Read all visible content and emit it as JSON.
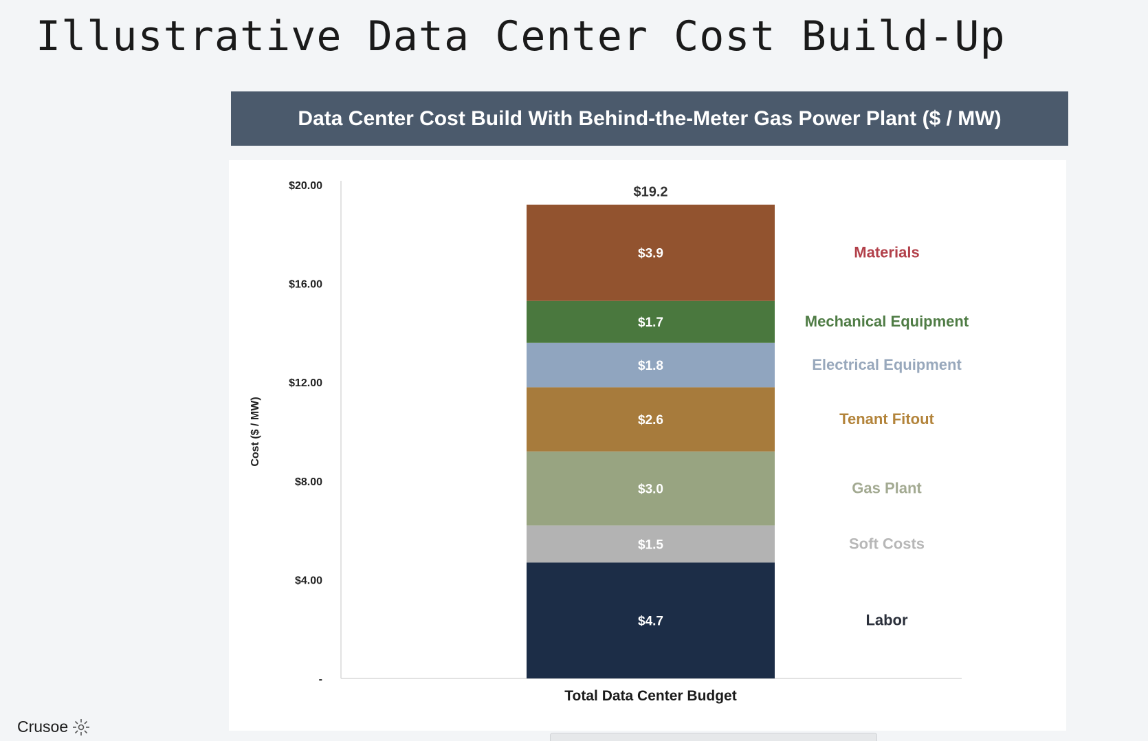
{
  "slide": {
    "title": "Illustrative Data Center Cost Build-Up",
    "brand": "Crusoe"
  },
  "chart_data": {
    "type": "bar",
    "stacked": true,
    "title": "Data Center Cost Build With Behind-the-Meter Gas Power Plant ($ / MW)",
    "categories": [
      "Total Data Center Budget"
    ],
    "ylabel": "Cost ($ / MW)",
    "xlabel": "",
    "ylim": [
      0,
      20
    ],
    "yticks": [
      {
        "value": 0,
        "label": "-"
      },
      {
        "value": 4,
        "label": "$4.00"
      },
      {
        "value": 8,
        "label": "$8.00"
      },
      {
        "value": 12,
        "label": "$12.00"
      },
      {
        "value": 16,
        "label": "$16.00"
      },
      {
        "value": 20,
        "label": "$20.00"
      }
    ],
    "grid": false,
    "legend": "right",
    "total_label": "$19.2",
    "series": [
      {
        "name": "Labor",
        "values": [
          4.7
        ],
        "label": "$4.7",
        "color": "#1c2d47",
        "label_color": "#2a2f3a"
      },
      {
        "name": "Soft Costs",
        "values": [
          1.5
        ],
        "label": "$1.5",
        "color": "#b3b3b3",
        "label_color": "#b7b7b7"
      },
      {
        "name": "Gas Plant",
        "values": [
          3.0
        ],
        "label": "$3.0",
        "color": "#98a481",
        "label_color": "#a3aa92"
      },
      {
        "name": "Tenant Fitout",
        "values": [
          2.6
        ],
        "label": "$2.6",
        "color": "#a77b3c",
        "label_color": "#b3843b"
      },
      {
        "name": "Electrical Equipment",
        "values": [
          1.8
        ],
        "label": "$1.8",
        "color": "#90a5bf",
        "label_color": "#98a8bc"
      },
      {
        "name": "Mechanical Equipment",
        "values": [
          1.7
        ],
        "label": "$1.7",
        "color": "#4a783e",
        "label_color": "#4f7c45"
      },
      {
        "name": "Materials",
        "values": [
          3.9
        ],
        "label": "$3.9",
        "color": "#92532f",
        "label_color": "#b2404a"
      }
    ]
  }
}
